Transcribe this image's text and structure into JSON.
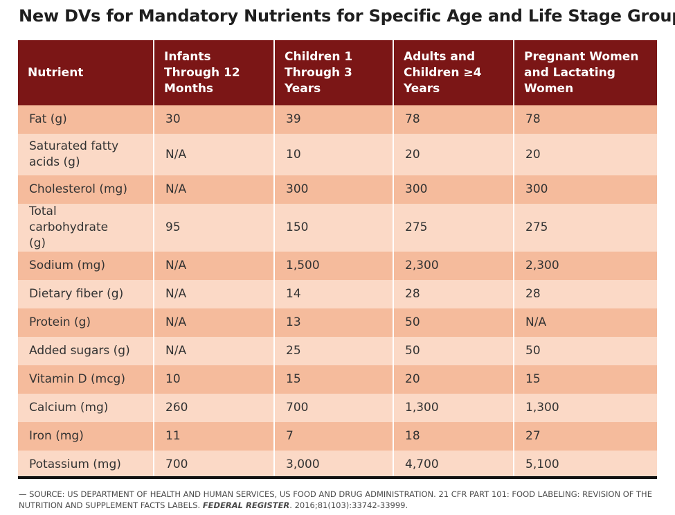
{
  "title": "New DVs for Mandatory Nutrients for Specific Age and Life Stage Groups",
  "table": {
    "headers": [
      "Nutrient",
      "Infants Through 12 Months",
      "Children 1 Through 3 Years",
      "Adults and Children ≥4 Years",
      "Pregnant Women and Lactating Women"
    ],
    "rows": [
      [
        "Fat (g)",
        "30",
        "39",
        "78",
        "78"
      ],
      [
        "Saturated fatty acids (g)",
        "N/A",
        "10",
        "20",
        "20"
      ],
      [
        "Cholesterol (mg)",
        "N/A",
        "300",
        "300",
        "300"
      ],
      [
        "Total carbohydrate (g)",
        "95",
        "150",
        "275",
        "275"
      ],
      [
        "Sodium (mg)",
        "N/A",
        "1,500",
        "2,300",
        "2,300"
      ],
      [
        "Dietary fiber (g)",
        "N/A",
        "14",
        "28",
        "28"
      ],
      [
        "Protein (g)",
        "N/A",
        "13",
        "50",
        "N/A"
      ],
      [
        "Added sugars (g)",
        "N/A",
        "25",
        "50",
        "50"
      ],
      [
        "Vitamin D (mcg)",
        "10",
        "15",
        "20",
        "15"
      ],
      [
        "Calcium (mg)",
        "260",
        "700",
        "1,300",
        "1,300"
      ],
      [
        "Iron (mg)",
        "11",
        "7",
        "18",
        "27"
      ],
      [
        "Potassium (mg)",
        "700",
        "3,000",
        "4,700",
        "5,100"
      ]
    ]
  },
  "source": {
    "prefix": "— SOURCE: US DEPARTMENT OF HEALTH AND HUMAN SERVICES, US FOOD AND DRUG ADMINISTRATION. 21 CFR PART 101: FOOD LABELING: REVISION OF THE NUTRITION AND SUPPLEMENT FACTS LABELS. ",
    "journal": "FEDERAL REGISTER",
    "suffix": ". 2016;81(103):33742-33999."
  },
  "colors": {
    "header_bg": "#7b1616",
    "row_dark": "#f5bb9c",
    "row_light": "#fbd9c6"
  }
}
